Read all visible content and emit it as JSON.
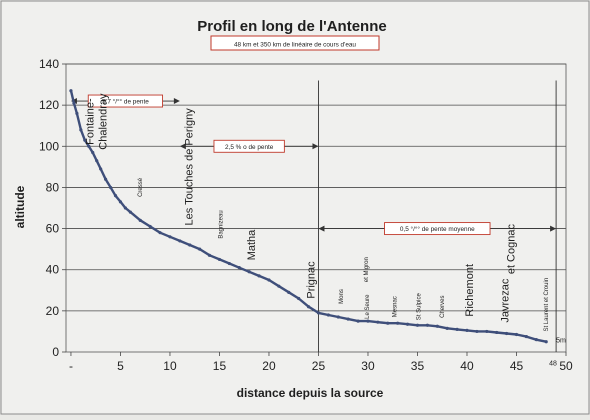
{
  "chart_data": {
    "type": "line",
    "title": "Profil en long de l'Antenne",
    "subtitle": "48 km et 350 km de linéaire de cours d'eau",
    "xlabel": "distance depuis la source",
    "ylabel": "altitude",
    "xlim": [
      -0.5,
      50
    ],
    "ylim": [
      0,
      140
    ],
    "x_ticks": [
      "-",
      "5",
      "10",
      "15",
      "20",
      "25",
      "30",
      "35",
      "40",
      "45",
      "50"
    ],
    "y_ticks": [
      "0",
      "20",
      "40",
      "60",
      "80",
      "100",
      "120",
      "140"
    ],
    "grid": "horizontal",
    "series": [
      {
        "color": "#3f4f7a",
        "x": [
          0,
          0.3,
          0.6,
          1.0,
          1.4,
          1.8,
          2.2,
          2.6,
          3.0,
          3.5,
          4.0,
          4.5,
          5.0,
          5.5,
          6.0,
          7.0,
          8.0,
          9.0,
          10.0,
          11.0,
          12.0,
          13.0,
          14.0,
          15.0,
          16.0,
          17.0,
          18.0,
          19.0,
          20.0,
          21.0,
          22.0,
          23.0,
          24.0,
          25.0,
          26.0,
          27.0,
          28.0,
          29.0,
          30.0,
          31.0,
          32.0,
          33.0,
          34.0,
          35.0,
          36.0,
          37.0,
          38.0,
          39.0,
          40.0,
          41.0,
          42.0,
          43.0,
          44.0,
          45.0,
          46.0,
          47.0,
          48.0
        ],
        "y": [
          127,
          121,
          116,
          108,
          103,
          100,
          97,
          93,
          89,
          84,
          80,
          76,
          73,
          70,
          68,
          64,
          61,
          58,
          56,
          54,
          52,
          50,
          47,
          45,
          43,
          41,
          39,
          37,
          35,
          32,
          29,
          26,
          22,
          19,
          18,
          17,
          16,
          15,
          15,
          14.5,
          14,
          14,
          13.5,
          13,
          13,
          12.5,
          11.5,
          11,
          10.5,
          10,
          10,
          9.5,
          9,
          8.5,
          7.5,
          6,
          5
        ]
      }
    ],
    "slopes": [
      {
        "text": "5,7 °/°° de pente",
        "x_from": 0,
        "x_to": 11,
        "y": 122
      },
      {
        "text": "2,5 % o de pente",
        "x_from": 11,
        "x_to": 25,
        "y": 100
      },
      {
        "text": "0,5 °/°° de pente moyenne",
        "x_from": 25,
        "x_to": 49,
        "y": 60
      }
    ],
    "dividers_x": [
      25,
      49
    ],
    "places": [
      {
        "name": "Fontaine-",
        "x": 2.3,
        "y": 112,
        "size": 11
      },
      {
        "name": "Chalendray",
        "x": 3.6,
        "y": 112,
        "size": 11
      },
      {
        "name": "Cressé",
        "x": 7.2,
        "y": 80,
        "size": 6
      },
      {
        "name": "Les Touches de Perigny",
        "x": 12.3,
        "y": 90,
        "size": 11
      },
      {
        "name": "Bagnizeau",
        "x": 15.3,
        "y": 62,
        "size": 6
      },
      {
        "name": "Matha",
        "x": 18.6,
        "y": 52,
        "size": 11
      },
      {
        "name": "Prignac",
        "x": 24.6,
        "y": 35,
        "size": 11
      },
      {
        "name": "Mons",
        "x": 27.5,
        "y": 27,
        "size": 6
      },
      {
        "name": "et Migron",
        "x": 30.0,
        "y": 40,
        "size": 6
      },
      {
        "name": "Le Seure",
        "x": 30.1,
        "y": 22,
        "size": 6
      },
      {
        "name": "Mesnac",
        "x": 32.9,
        "y": 22,
        "size": 6
      },
      {
        "name": "St Sulpice",
        "x": 35.3,
        "y": 22,
        "size": 6
      },
      {
        "name": "Cherves",
        "x": 37.7,
        "y": 22,
        "size": 6
      },
      {
        "name": "Richemont",
        "x": 40.6,
        "y": 30,
        "size": 11
      },
      {
        "name": "Javrezac",
        "x": 44.2,
        "y": 25,
        "size": 11
      },
      {
        "name": "et Cognac",
        "x": 44.8,
        "y": 50,
        "size": 11
      },
      {
        "name": "St Laurent et Crouin",
        "x": 48.2,
        "y": 23,
        "size": 6
      }
    ],
    "end_labels": [
      {
        "text": "5m",
        "x": 49.0,
        "y": 4.5
      },
      {
        "text": "48",
        "x": 48.3,
        "y": -6.5
      }
    ]
  }
}
